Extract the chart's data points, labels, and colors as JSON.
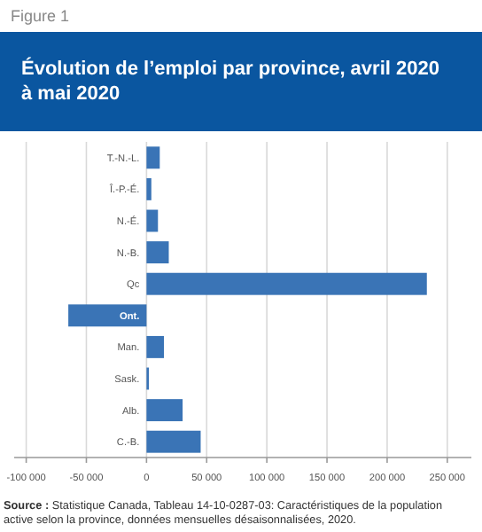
{
  "chart_data": {
    "type": "bar",
    "orientation": "horizontal",
    "title": "Évolution de l’emploi par province, avril 2020 à mai 2020",
    "categories": [
      "T.-N.-L.",
      "Î.-P.-É.",
      "N.-É.",
      "N.-B.",
      "Qc",
      "Ont.",
      "Man.",
      "Sask.",
      "Alb.",
      "C.-B."
    ],
    "values": [
      11000,
      4000,
      9500,
      18500,
      233000,
      -65000,
      14500,
      2000,
      30000,
      45000
    ],
    "color": "#3a74b6",
    "xlim": [
      -110000,
      270000
    ],
    "xticks": [
      {
        "value": -100000,
        "label": "-100 000"
      },
      {
        "value": -50000,
        "label": "-50 000"
      },
      0,
      {
        "value": 50000,
        "label": "50 000"
      },
      {
        "value": 100000,
        "label": "100 000"
      },
      {
        "value": 150000,
        "label": "150 000"
      },
      {
        "value": 200000,
        "label": "200 000"
      },
      {
        "value": 250000,
        "label": "250 000"
      }
    ],
    "grid": "x",
    "annotations": [
      "Figure 1",
      "Source : Statistique Canada, Tableau 14-10-0287-03: Caractéristiques de la population active selon la province, données mensuelles désaisonnalisées, 2020."
    ]
  }
}
